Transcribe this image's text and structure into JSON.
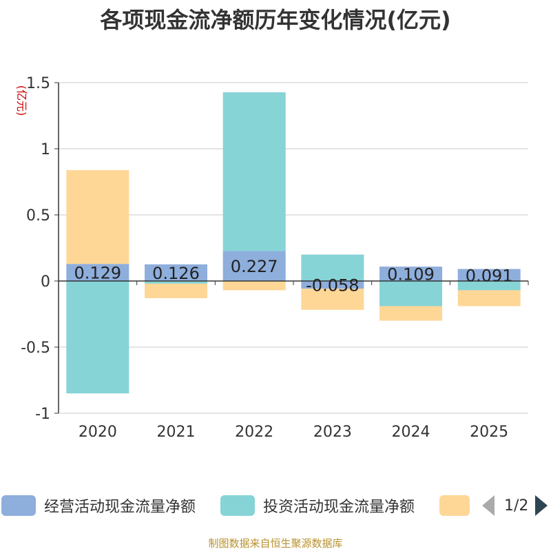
{
  "title": "各项现金流净额历年变化情况(亿元)",
  "source": "制图数据来自恒生聚源数据库",
  "legend": {
    "items": [
      {
        "label": "经营活动现金流量净额",
        "color": "#8eaedc"
      },
      {
        "label": "投资活动现金流量净额",
        "color": "#86d4d6"
      },
      {
        "label": "",
        "color": "#fed797"
      }
    ],
    "page": "1/2"
  },
  "chart_data": {
    "type": "bar",
    "stacked": true,
    "ylabel": "(亿元)",
    "ylim": [
      -1,
      1.5
    ],
    "yticks": [
      "1.5",
      "1",
      "0.5",
      "0",
      "-0.5",
      "-1"
    ],
    "categories": [
      "2020",
      "2021",
      "2022",
      "2023",
      "2024",
      "2025"
    ],
    "series": [
      {
        "name": "经营活动现金流量净额",
        "color": "#8eaedc",
        "values": [
          0.129,
          0.126,
          0.227,
          -0.058,
          0.109,
          0.091
        ],
        "labels": [
          "0.129",
          "0.126",
          "0.227",
          "-0.058",
          "0.109",
          "0.091"
        ]
      },
      {
        "name": "投资活动现金流量净额",
        "color": "#86d4d6",
        "values": [
          -0.85,
          -0.02,
          1.2,
          0.2,
          -0.19,
          -0.07
        ]
      },
      {
        "color": "#fed797",
        "values": [
          0.71,
          -0.11,
          -0.07,
          -0.16,
          -0.11,
          -0.12
        ]
      }
    ],
    "grid": true
  }
}
